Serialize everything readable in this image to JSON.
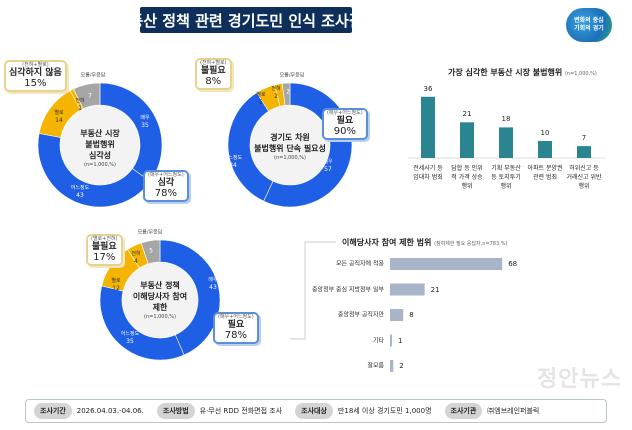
{
  "header": {
    "title": "부동산 정책 관련 경기도민 인식 조사결과",
    "logo_line1": "변화의 중심",
    "logo_line2": "기회의 경기"
  },
  "colors": {
    "title_bg": "#0d2f5a",
    "blue": "#1f5fe6",
    "yellow": "#f4b400",
    "gray": "#a6a6a6",
    "teal_bar": "#2a8590",
    "gray_bar": "#a9b4c8"
  },
  "chart_data": [
    {
      "type": "pie",
      "title": "부동산 시장 불법행위 심각성",
      "note": "(n=1,000,%)",
      "slices": [
        {
          "label": "매우",
          "value": 35,
          "color": "#1f5fe6"
        },
        {
          "label": "어느정도",
          "value": 43,
          "color": "#1f5fe6"
        },
        {
          "label": "별로",
          "value": 14,
          "color": "#f4b400"
        },
        {
          "label": "전혀",
          "value": 1,
          "color": "#f4b400"
        },
        {
          "label": "모름/무응답",
          "value": 7,
          "color": "#a6a6a6"
        }
      ],
      "callouts": [
        {
          "sub": "(전혀+별로)",
          "main": "심각하지 않음",
          "pct": "15%"
        },
        {
          "sub": "(매우+어느정도)",
          "main": "심각",
          "pct": "78%"
        }
      ]
    },
    {
      "type": "pie",
      "title": "경기도 차원 불법행위 단속 필요성",
      "note": "(n=1,000,%)",
      "slices": [
        {
          "label": "매우",
          "value": 57,
          "color": "#1f5fe6"
        },
        {
          "label": "어느정도",
          "value": 34,
          "color": "#1f5fe6"
        },
        {
          "label": "별로",
          "value": 5,
          "color": "#f4b400"
        },
        {
          "label": "전혀",
          "value": 2,
          "color": "#f4b400"
        },
        {
          "label": "모름/무응답",
          "value": 2,
          "color": "#a6a6a6"
        }
      ],
      "callouts": [
        {
          "sub": "(전혀+별로)",
          "main": "불필요",
          "pct": "8%"
        },
        {
          "sub": "(매우+어느정도)",
          "main": "필요",
          "pct": "90%"
        }
      ]
    },
    {
      "type": "bar",
      "title": "가장 심각한 부동산 시장 불법행위",
      "note": "(n=1,000,%)",
      "categories": [
        "전세사기 등 임대차 범죄",
        "담합 등 인위적 가격 상승행위",
        "기획 부동산 등 토지투기 행위",
        "아파트 분양권 관련 범죄",
        "허위신고 등 거래신고 위반 행위"
      ],
      "values": [
        36,
        21,
        18,
        10,
        7
      ]
    },
    {
      "type": "pie",
      "title": "부동산 정책 이해당사자 참여 제한",
      "note": "(n=1,000,%)",
      "slices": [
        {
          "label": "매우",
          "value": 43,
          "color": "#1f5fe6"
        },
        {
          "label": "어느정도",
          "value": 35,
          "color": "#1f5fe6"
        },
        {
          "label": "별로",
          "value": 12,
          "color": "#f4b400"
        },
        {
          "label": "전혀",
          "value": 4,
          "color": "#f4b400"
        },
        {
          "label": "모름/무응답",
          "value": 5,
          "color": "#a6a6a6"
        }
      ],
      "callouts": [
        {
          "sub": "(별로+전혀)",
          "main": "불필요",
          "pct": "17%"
        },
        {
          "sub": "(매우+어느정도)",
          "main": "필요",
          "pct": "78%"
        }
      ]
    },
    {
      "type": "bar",
      "orientation": "horizontal",
      "title": "이해당사자 참여 제한 범위",
      "note": "(참여제한 필요 응답자,n=783,%)",
      "categories": [
        "모든 공직자에 적용",
        "중앙정부 중심 지방정부 일부",
        "중앙정부 공직자만",
        "기타",
        "잘모름"
      ],
      "values": [
        68,
        21,
        8,
        1,
        2
      ]
    }
  ],
  "footer": [
    {
      "k": "조사기간",
      "v": "2026.04.03.-04.06."
    },
    {
      "k": "조사방법",
      "v": "유·무선 RDD 전화면접 조사"
    },
    {
      "k": "조사대상",
      "v": "만18세 이상 경기도민 1,000명"
    },
    {
      "k": "조사기관",
      "v": "㈜엠브레인퍼블릭"
    }
  ],
  "watermark": "정안뉴스"
}
